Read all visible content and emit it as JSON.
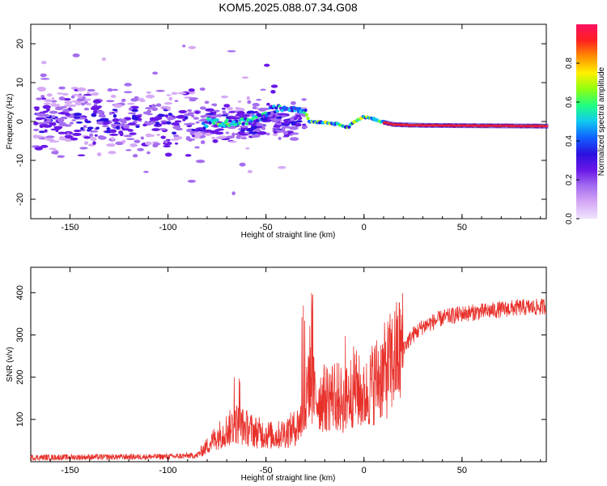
{
  "title": "KOM5.2025.088.07.34.G08",
  "chart_data": [
    {
      "type": "heatmap",
      "name": "spectrogram",
      "xlabel": "Height of straight line (km)",
      "ylabel": "Frequency (Hz)",
      "xlim": [
        -170,
        93
      ],
      "ylim": [
        -25,
        25
      ],
      "xticks": [
        -150,
        -100,
        -50,
        0,
        50
      ],
      "yticks": [
        -20,
        -10,
        0,
        10,
        20
      ],
      "colorbar": {
        "label": "Normalized spectral amplitude",
        "ticks": [
          0.0,
          0.2,
          0.4,
          0.6,
          0.8
        ],
        "range": [
          0,
          1
        ],
        "colors": [
          "#f0e4ff",
          "#d6aaf5",
          "#a56ef0",
          "#6a18e8",
          "#2c10e0",
          "#1060ff",
          "#10c8f0",
          "#20ff80",
          "#90ff10",
          "#fff000",
          "#ff9000",
          "#ff2020",
          "#ff1060"
        ]
      },
      "track": [
        [
          -80,
          0
        ],
        [
          -70,
          -0.5
        ],
        [
          -60,
          0
        ],
        [
          -55,
          0.8
        ],
        [
          -50,
          1.5
        ],
        [
          -47,
          3.2
        ],
        [
          -40,
          3.5
        ],
        [
          -35,
          3.5
        ],
        [
          -30,
          3.0
        ],
        [
          -28,
          0
        ],
        [
          -20,
          -0.2
        ],
        [
          -12,
          -0.8
        ],
        [
          -8,
          -1.5
        ],
        [
          -5,
          0
        ],
        [
          0,
          1.2
        ],
        [
          5,
          0.6
        ],
        [
          8,
          0
        ],
        [
          15,
          -0.8
        ],
        [
          30,
          -1
        ],
        [
          60,
          -1.1
        ],
        [
          93,
          -1.2
        ]
      ],
      "scatter_extent": {
        "x": [
          -168,
          -30
        ],
        "y_center": 0,
        "y_spread": 4
      }
    },
    {
      "type": "line",
      "name": "SNR",
      "xlabel": "Height of straight line (km)",
      "ylabel": "SNR (v/v)",
      "xlim": [
        -170,
        93
      ],
      "ylim": [
        0,
        460
      ],
      "xticks": [
        -150,
        -100,
        -50,
        0,
        50
      ],
      "yticks": [
        100,
        200,
        300,
        400
      ],
      "color": "#e8302a",
      "series": [
        {
          "x": [
            -170,
            -100,
            -85,
            -75,
            -65,
            -55,
            -45,
            -35,
            -30,
            -28,
            -25,
            -20,
            -15,
            -10,
            -5,
            0,
            5,
            10,
            15,
            20,
            25,
            30,
            40,
            50,
            60,
            70,
            80,
            90,
            93
          ],
          "y": [
            10,
            12,
            15,
            60,
            90,
            70,
            60,
            80,
            110,
            220,
            150,
            150,
            160,
            140,
            180,
            150,
            190,
            210,
            240,
            270,
            300,
            320,
            340,
            350,
            355,
            360,
            365,
            365,
            370
          ]
        }
      ]
    }
  ]
}
